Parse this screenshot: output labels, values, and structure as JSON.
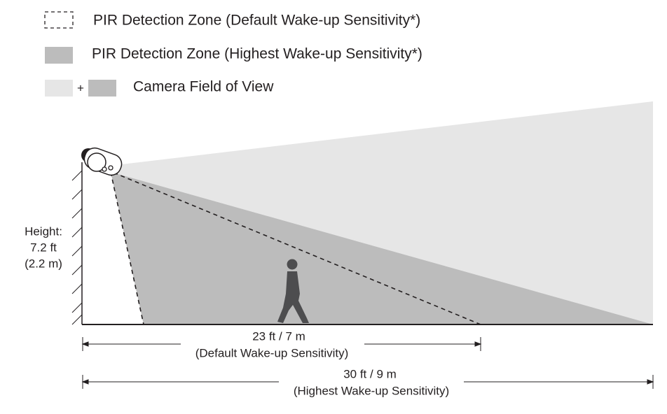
{
  "legend": {
    "items": [
      {
        "label": "PIR Detection Zone (Default Wake-up Sensitivity*)"
      },
      {
        "label": "PIR Detection Zone (Highest Wake-up Sensitivity*)"
      },
      {
        "label": "Camera Field of View",
        "plus": "+"
      }
    ]
  },
  "height": {
    "lines": [
      "Height:",
      "7.2 ft",
      "(2.2 m)"
    ]
  },
  "dimensions": [
    {
      "distance": "23 ft / 7 m",
      "note": "(Default Wake-up Sensitivity)"
    },
    {
      "distance": "30 ft / 9 m",
      "note": "(Highest Wake-up Sensitivity)"
    }
  ]
}
